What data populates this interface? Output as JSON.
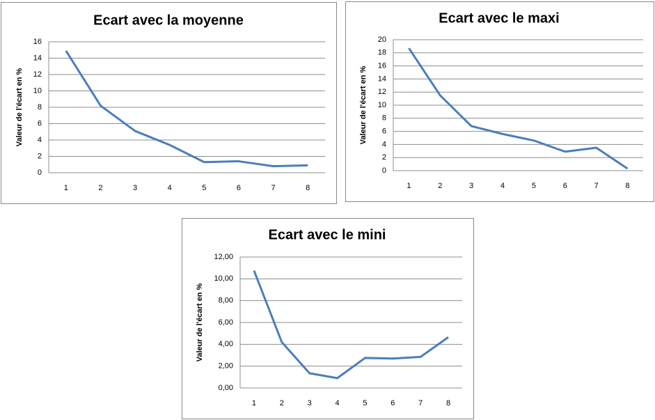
{
  "chart_data": [
    {
      "type": "line",
      "title": "Ecart avec la moyenne",
      "y_label": "Valeur de l'écart en %",
      "categories": [
        "1",
        "2",
        "3",
        "4",
        "5",
        "6",
        "7",
        "8"
      ],
      "series": [
        {
          "color": "#4a7ebb",
          "values": [
            14.9,
            8.2,
            5.1,
            3.4,
            1.3,
            1.4,
            0.8,
            0.9
          ]
        }
      ],
      "ylim": [
        0,
        16
      ],
      "yticks": [
        0,
        2,
        4,
        6,
        8,
        10,
        12,
        14,
        16
      ],
      "grid": true
    },
    {
      "type": "line",
      "title": "Ecart avec le maxi",
      "y_label": "Valeur de l'écart en %",
      "categories": [
        "1",
        "2",
        "3",
        "4",
        "5",
        "6",
        "7",
        "8"
      ],
      "series": [
        {
          "color": "#4a7ebb",
          "values": [
            18.7,
            11.5,
            6.8,
            5.6,
            4.6,
            2.9,
            3.5,
            0.3
          ]
        }
      ],
      "ylim": [
        0,
        20
      ],
      "yticks": [
        0,
        2,
        4,
        6,
        8,
        10,
        12,
        14,
        16,
        18,
        20
      ],
      "grid": true
    },
    {
      "type": "line",
      "title": "Ecart avec le mini",
      "y_label": "Valeur de l'écart en %",
      "categories": [
        "1",
        "2",
        "3",
        "4",
        "5",
        "6",
        "7",
        "8"
      ],
      "series": [
        {
          "color": "#4a7ebb",
          "values": [
            10.75,
            4.2,
            1.35,
            0.9,
            2.75,
            2.7,
            2.85,
            4.65
          ]
        }
      ],
      "ylim": [
        0,
        12
      ],
      "yticks": [
        {
          "value": 0,
          "label": "0,00"
        },
        {
          "value": 2,
          "label": "2,00"
        },
        {
          "value": 4,
          "label": "4,00"
        },
        {
          "value": 6,
          "label": "6,00"
        },
        {
          "value": 8,
          "label": "8,00"
        },
        {
          "value": 10,
          "label": "10,00"
        },
        {
          "value": 12,
          "label": "12,00"
        }
      ],
      "grid": true
    }
  ]
}
